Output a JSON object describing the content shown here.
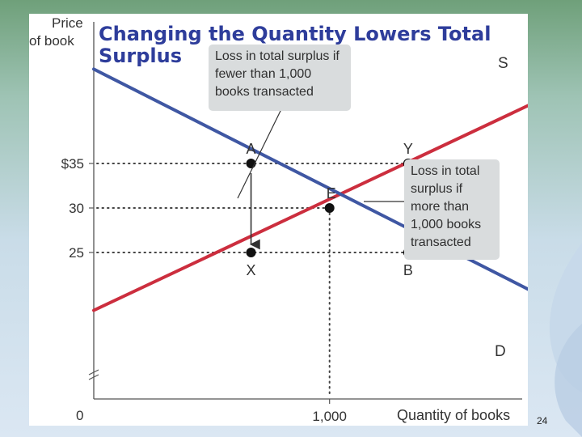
{
  "slide": {
    "title": "Changing the Quantity Lowers Total Surplus",
    "page_number": "24"
  },
  "chart_data": {
    "type": "line",
    "ylabel": "Price of book",
    "xlabel": "Quantity of books",
    "origin_label": "0",
    "x_tick": {
      "value": 1000,
      "label": "1,000"
    },
    "y_ticks": [
      {
        "value": 35,
        "label": "$35"
      },
      {
        "value": 30,
        "label": "30"
      },
      {
        "value": 25,
        "label": "25"
      }
    ],
    "series": [
      {
        "name": "S",
        "color": "#cc2e3e",
        "x": [
          0,
          2250
        ],
        "y": [
          18.5,
          46.6
        ]
      },
      {
        "name": "D",
        "color": "#3f57a3",
        "x": [
          0,
          2250
        ],
        "y": [
          45.6,
          15.4
        ]
      }
    ],
    "points": [
      {
        "label": "A",
        "x": 667,
        "y": 35
      },
      {
        "label": "Y",
        "x": 1333,
        "y": 35
      },
      {
        "label": "E",
        "x": 1000,
        "y": 30
      },
      {
        "label": "X",
        "x": 667,
        "y": 25
      },
      {
        "label": "B",
        "x": 1333,
        "y": 25
      }
    ],
    "annotations": [
      "Loss in total surplus if fewer than 1,000 books transacted",
      "Loss in total surplus if more than 1,000 books transacted"
    ]
  }
}
